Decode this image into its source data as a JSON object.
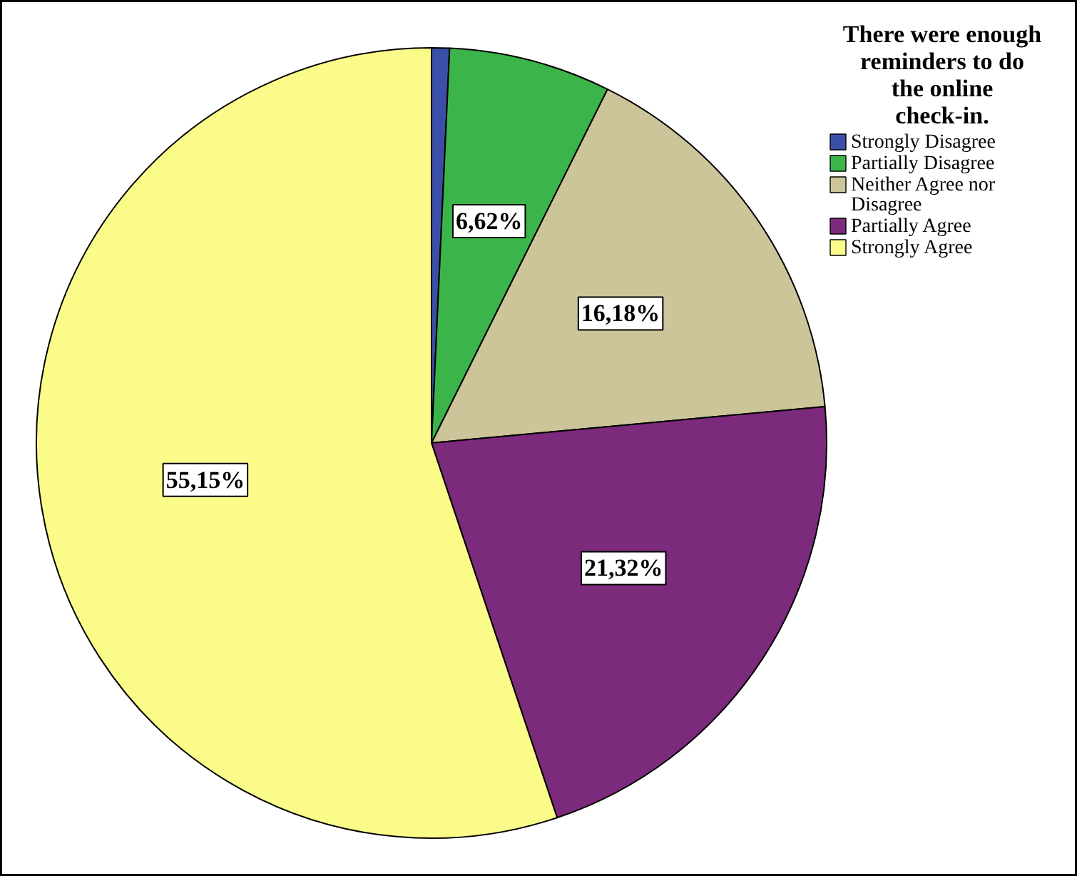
{
  "chart_data": {
    "type": "pie",
    "legend_title": "There were enough reminders to do the online check-in.",
    "categories": [
      "Strongly Disagree",
      "Partially Disagree",
      "Neither Agree nor Disagree",
      "Partially Agree",
      "Strongly Agree"
    ],
    "values": [
      0.73,
      6.62,
      16.18,
      21.32,
      55.15
    ],
    "colors": [
      "#3b4fa8",
      "#3bb54a",
      "#cdc59a",
      "#7b2a7c",
      "#fbfb8a"
    ],
    "value_labels": [
      null,
      "6,62%",
      "16,18%",
      "21,32%",
      "55,15%"
    ],
    "legend": "top right"
  }
}
